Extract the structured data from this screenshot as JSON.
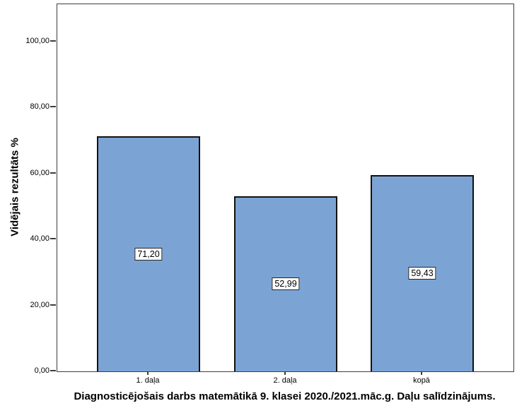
{
  "chart_data": {
    "type": "bar",
    "title": "Diagnosticējošais darbs matemātikā 9. klasei 2020./2021.māc.g. Daļu salīdzinājums.",
    "ylabel": "Vidējais rezultāts %",
    "xlabel": "",
    "categories": [
      "1. daļa",
      "2. daļa",
      "kopā"
    ],
    "values": [
      71.2,
      52.99,
      59.43
    ],
    "value_labels": [
      "71,20",
      "52,99",
      "59,43"
    ],
    "y_ticks": [
      {
        "value": 0,
        "label": "0,00"
      },
      {
        "value": 20,
        "label": "20,00"
      },
      {
        "value": 40,
        "label": "40,00"
      },
      {
        "value": 60,
        "label": "60,00"
      },
      {
        "value": 80,
        "label": "80,00"
      },
      {
        "value": 100,
        "label": "100,00"
      }
    ],
    "ylim": [
      0,
      111.3
    ],
    "grid": false,
    "legend": "none",
    "colors": {
      "bar_fill": "#7BA4D4",
      "bar_border": "#111111",
      "frame": "#3d3d3d",
      "text": "#000000",
      "label_box_bg": "#ffffff",
      "label_box_border": "#222222",
      "background": "#ffffff"
    }
  }
}
